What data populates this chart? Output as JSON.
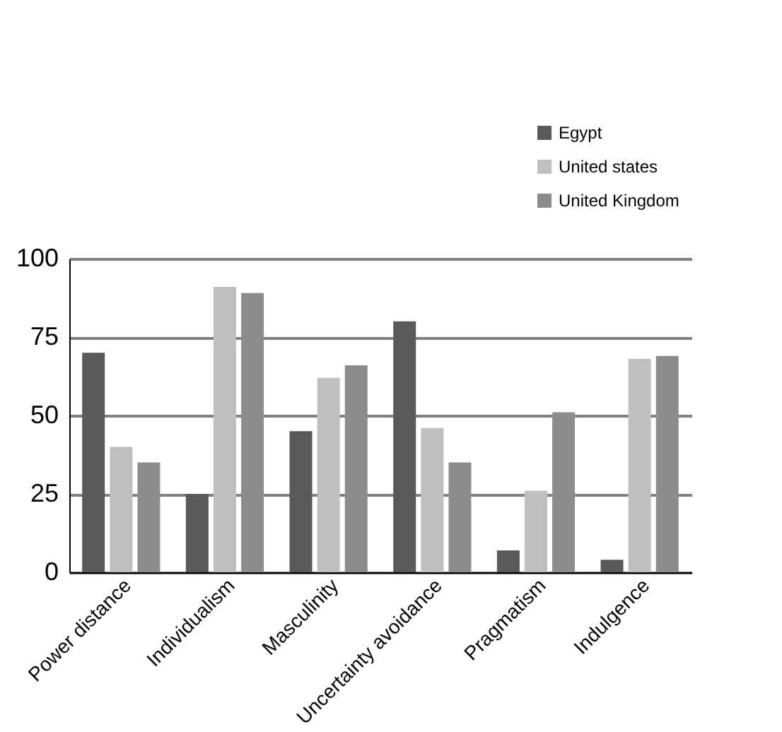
{
  "chart_data": {
    "type": "bar",
    "categories": [
      "Power distance",
      "Individualism",
      "Masculinity",
      "Uncertainty avoidance",
      "Pragmatism",
      "Indulgence"
    ],
    "series": [
      {
        "name": "Egypt",
        "color": "#595959",
        "values": [
          70,
          25,
          45,
          80,
          7,
          4
        ]
      },
      {
        "name": "United states",
        "color": "#bfbfbf",
        "values": [
          40,
          91,
          62,
          46,
          26,
          68
        ]
      },
      {
        "name": "United Kingdom",
        "color": "#8c8c8c",
        "values": [
          35,
          89,
          66,
          35,
          51,
          69
        ]
      }
    ],
    "ylim": [
      0,
      100
    ],
    "yticks": [
      0,
      25,
      50,
      75,
      100
    ],
    "grid": "y",
    "legend": "top right"
  }
}
